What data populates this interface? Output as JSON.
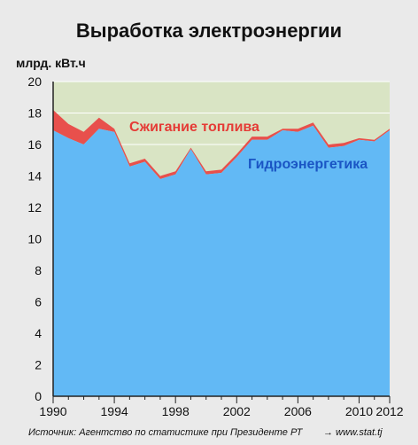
{
  "colors": {
    "background": "#eaeaea",
    "plot_background": "#d9e4c4",
    "hydro": "#62b9f5",
    "fuel": "#e8504c",
    "hydro_label": "#1a55c4",
    "fuel_label": "#e53b36",
    "grid": "#ffffff",
    "axis": "#222222"
  },
  "chart_data": {
    "type": "area",
    "title": "Выработка электроэнергии",
    "ylabel": "млрд. кВт.ч",
    "xlabel": "",
    "x": [
      1990,
      1991,
      1992,
      1993,
      1994,
      1995,
      1996,
      1997,
      1998,
      1999,
      2000,
      2001,
      2002,
      2003,
      2004,
      2005,
      2006,
      2007,
      2008,
      2009,
      2010,
      2011,
      2012
    ],
    "series": [
      {
        "name": "Гидроэнергетика",
        "values": [
          16.9,
          16.4,
          16.0,
          17.0,
          16.8,
          14.6,
          14.9,
          13.8,
          14.1,
          15.7,
          14.1,
          14.2,
          15.2,
          16.3,
          16.3,
          16.9,
          16.8,
          17.2,
          15.8,
          15.9,
          16.3,
          16.2,
          16.9
        ]
      },
      {
        "name": "Сжигание топлива",
        "values": [
          1.3,
          0.9,
          0.8,
          0.7,
          0.2,
          0.2,
          0.2,
          0.2,
          0.2,
          0.1,
          0.2,
          0.2,
          0.2,
          0.2,
          0.2,
          0.1,
          0.2,
          0.2,
          0.2,
          0.2,
          0.1,
          0.1,
          0.1
        ]
      }
    ],
    "stacked": true,
    "ylim": [
      0,
      20
    ],
    "yticks": [
      "0",
      "2",
      "4",
      "6",
      "8",
      "10",
      "12",
      "14",
      "16",
      "18",
      "20"
    ],
    "xlim": [
      1990,
      2012
    ],
    "xtick_values": [
      1990,
      1994,
      1998,
      2002,
      2006,
      2010,
      2012
    ],
    "xticks": [
      "1990",
      "1994",
      "1998",
      "2002",
      "2006",
      "2010",
      "2012"
    ],
    "grid": true,
    "legend": "inline labels on areas"
  },
  "footer": {
    "source": "Источник: Агентство по статистике при Президенте РТ",
    "link": "→ www.stat.tj"
  }
}
